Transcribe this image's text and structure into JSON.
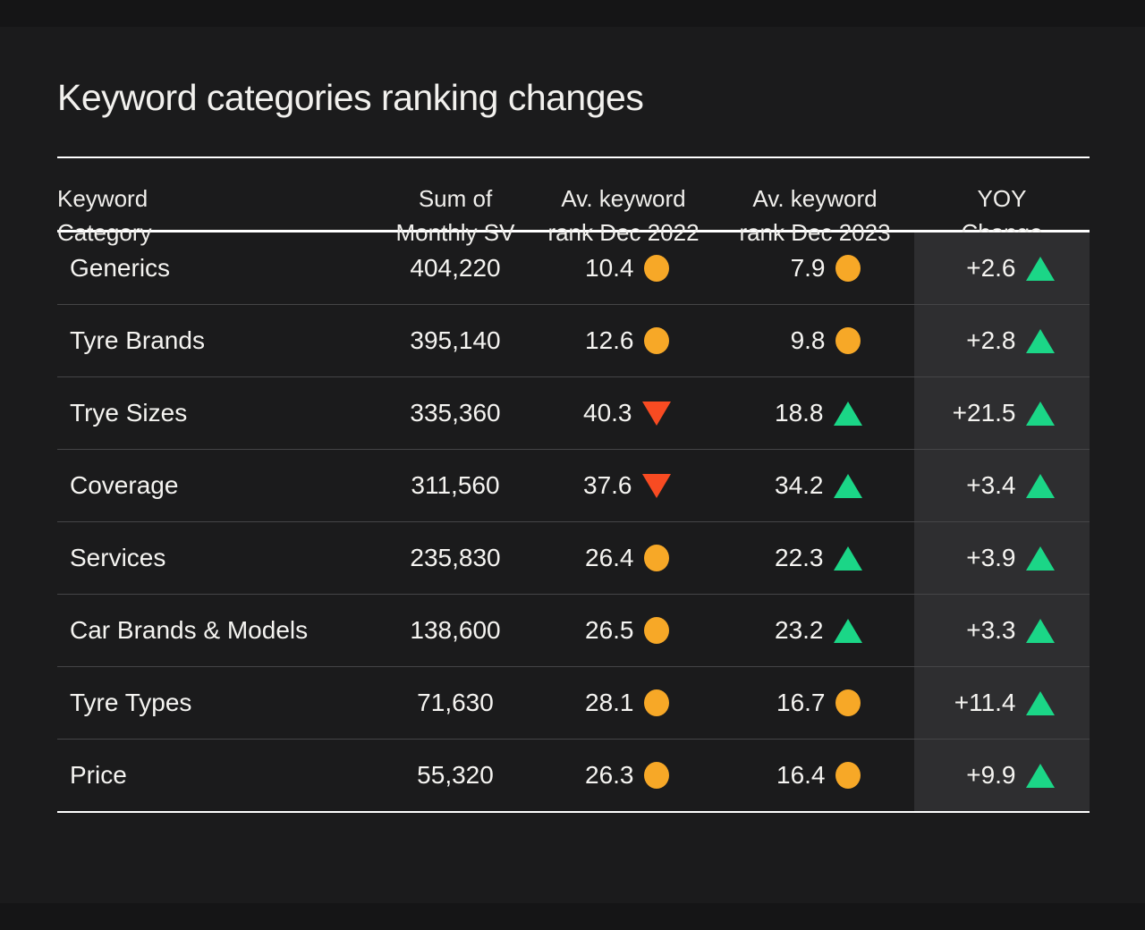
{
  "page": {
    "title": "Keyword categories ranking changes"
  },
  "colors": {
    "background": "#1b1b1c",
    "highlight_column_background": "#2e2e30",
    "steady_indicator": "#f7a827",
    "down_indicator": "#f84b22",
    "up_indicator": "#1bd687",
    "text": "#f5f4f1"
  },
  "icons": {
    "steady": "orange-circle-icon",
    "up": "green-triangle-up-icon",
    "down": "red-triangle-down-icon"
  },
  "header": {
    "category": {
      "line1": "Keyword",
      "line2": "Category"
    },
    "sum_sv": {
      "line1": "Sum of",
      "line2": "Monthly SV"
    },
    "rank_2022": {
      "line1": "Av. keyword",
      "line2": "rank Dec 2022"
    },
    "rank_2023": {
      "line1": "Av. keyword",
      "line2": "rank Dec 2023"
    },
    "yoy": {
      "line1": "YOY",
      "line2": "Change"
    }
  },
  "table": {
    "rows": [
      {
        "category": "Generics",
        "sum_monthly_sv": "404,220",
        "rank_dec_2022": {
          "value": "10.4",
          "indicator": "steady"
        },
        "rank_dec_2023": {
          "value": "7.9",
          "indicator": "steady"
        },
        "yoy_change": {
          "value": "+2.6",
          "indicator": "up"
        }
      },
      {
        "category": "Tyre Brands",
        "sum_monthly_sv": "395,140",
        "rank_dec_2022": {
          "value": "12.6",
          "indicator": "steady"
        },
        "rank_dec_2023": {
          "value": "9.8",
          "indicator": "steady"
        },
        "yoy_change": {
          "value": "+2.8",
          "indicator": "up"
        }
      },
      {
        "category": "Trye Sizes",
        "sum_monthly_sv": "335,360",
        "rank_dec_2022": {
          "value": "40.3",
          "indicator": "down"
        },
        "rank_dec_2023": {
          "value": "18.8",
          "indicator": "up"
        },
        "yoy_change": {
          "value": "+21.5",
          "indicator": "up"
        }
      },
      {
        "category": "Coverage",
        "sum_monthly_sv": "311,560",
        "rank_dec_2022": {
          "value": "37.6",
          "indicator": "down"
        },
        "rank_dec_2023": {
          "value": "34.2",
          "indicator": "up"
        },
        "yoy_change": {
          "value": "+3.4",
          "indicator": "up"
        }
      },
      {
        "category": "Services",
        "sum_monthly_sv": "235,830",
        "rank_dec_2022": {
          "value": "26.4",
          "indicator": "steady"
        },
        "rank_dec_2023": {
          "value": "22.3",
          "indicator": "up"
        },
        "yoy_change": {
          "value": "+3.9",
          "indicator": "up"
        }
      },
      {
        "category": "Car Brands & Models",
        "sum_monthly_sv": "138,600",
        "rank_dec_2022": {
          "value": "26.5",
          "indicator": "steady"
        },
        "rank_dec_2023": {
          "value": "23.2",
          "indicator": "up"
        },
        "yoy_change": {
          "value": "+3.3",
          "indicator": "up"
        }
      },
      {
        "category": "Tyre Types",
        "sum_monthly_sv": "71,630",
        "rank_dec_2022": {
          "value": "28.1",
          "indicator": "steady"
        },
        "rank_dec_2023": {
          "value": "16.7",
          "indicator": "steady"
        },
        "yoy_change": {
          "value": "+11.4",
          "indicator": "up"
        }
      },
      {
        "category": "Price",
        "sum_monthly_sv": "55,320",
        "rank_dec_2022": {
          "value": "26.3",
          "indicator": "steady"
        },
        "rank_dec_2023": {
          "value": "16.4",
          "indicator": "steady"
        },
        "yoy_change": {
          "value": "+9.9",
          "indicator": "up"
        }
      }
    ]
  },
  "chart_data": {
    "type": "table",
    "title": "Keyword categories ranking changes",
    "columns": [
      "Keyword Category",
      "Sum of Monthly SV",
      "Av. keyword rank Dec 2022",
      "Av. keyword rank Dec 2023",
      "YOY Change"
    ],
    "highlighted_column": "YOY Change",
    "indicator_legend": {
      "steady": "orange circle",
      "up": "green triangle up",
      "down": "red triangle down"
    },
    "rows": [
      {
        "category": "Generics",
        "sum_monthly_sv": 404220,
        "rank_dec_2022": 10.4,
        "rank_2022_trend": "steady",
        "rank_dec_2023": 7.9,
        "rank_2023_trend": "steady",
        "yoy_change": 2.6,
        "yoy_trend": "up"
      },
      {
        "category": "Tyre Brands",
        "sum_monthly_sv": 395140,
        "rank_dec_2022": 12.6,
        "rank_2022_trend": "steady",
        "rank_dec_2023": 9.8,
        "rank_2023_trend": "steady",
        "yoy_change": 2.8,
        "yoy_trend": "up"
      },
      {
        "category": "Trye Sizes",
        "sum_monthly_sv": 335360,
        "rank_dec_2022": 40.3,
        "rank_2022_trend": "down",
        "rank_dec_2023": 18.8,
        "rank_2023_trend": "up",
        "yoy_change": 21.5,
        "yoy_trend": "up"
      },
      {
        "category": "Coverage",
        "sum_monthly_sv": 311560,
        "rank_dec_2022": 37.6,
        "rank_2022_trend": "down",
        "rank_dec_2023": 34.2,
        "rank_2023_trend": "up",
        "yoy_change": 3.4,
        "yoy_trend": "up"
      },
      {
        "category": "Services",
        "sum_monthly_sv": 235830,
        "rank_dec_2022": 26.4,
        "rank_2022_trend": "steady",
        "rank_dec_2023": 22.3,
        "rank_2023_trend": "up",
        "yoy_change": 3.9,
        "yoy_trend": "up"
      },
      {
        "category": "Car Brands & Models",
        "sum_monthly_sv": 138600,
        "rank_dec_2022": 26.5,
        "rank_2022_trend": "steady",
        "rank_dec_2023": 23.2,
        "rank_2023_trend": "up",
        "yoy_change": 3.3,
        "yoy_trend": "up"
      },
      {
        "category": "Tyre Types",
        "sum_monthly_sv": 71630,
        "rank_dec_2022": 28.1,
        "rank_2022_trend": "steady",
        "rank_dec_2023": 16.7,
        "rank_2023_trend": "steady",
        "yoy_change": 11.4,
        "yoy_trend": "up"
      },
      {
        "category": "Price",
        "sum_monthly_sv": 55320,
        "rank_dec_2022": 26.3,
        "rank_2022_trend": "steady",
        "rank_dec_2023": 16.4,
        "rank_2023_trend": "steady",
        "yoy_change": 9.9,
        "yoy_trend": "up"
      }
    ]
  }
}
